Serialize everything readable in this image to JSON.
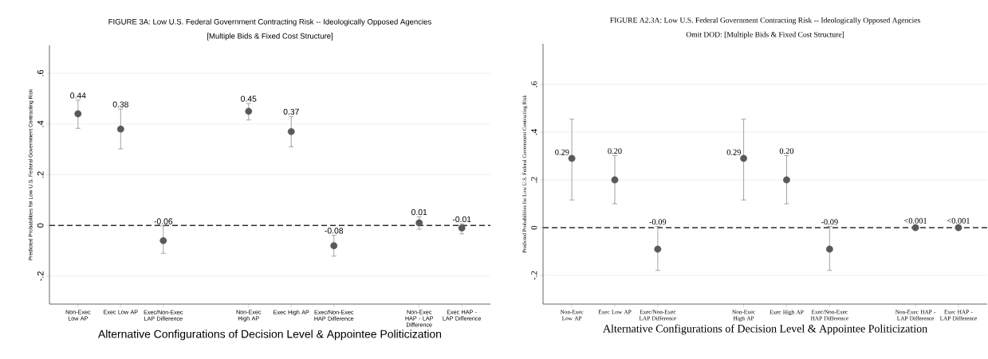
{
  "chart_data": [
    {
      "type": "scatter",
      "title": "FIGURE 3A: Low U.S. Federal Government Contracting Risk -- Ideologically Opposed Agencies",
      "subtitle": "[Multiple Bids & Fixed Cost Structure]",
      "xlabel": "Alternative Configurations of Decision Level & Appointee Politicization",
      "ylabel": "Predicted Probabilities for Low U.S. Federal Government Contracting Risk",
      "categories": [
        "Non-Exec Low AP",
        "Exec Low AP",
        "Exec/Non-Exec LAP Difference",
        null,
        "Non-Exec High AP",
        "Exec High AP",
        "Exec/Non-Exec HAP Difference",
        null,
        "Non-Exec HAP - LAP Difference",
        "Exec HAP - LAP Difference"
      ],
      "values": [
        0.44,
        0.38,
        -0.06,
        null,
        0.45,
        0.37,
        -0.08,
        null,
        0.01,
        -0.01
      ],
      "errors": [
        [
          0.383,
          0.494
        ],
        [
          0.302,
          0.459
        ],
        [
          -0.11,
          -0.002
        ],
        null,
        [
          0.416,
          0.481
        ],
        [
          0.31,
          0.43
        ],
        [
          -0.121,
          -0.039
        ],
        null,
        [
          -0.015,
          0.034
        ],
        [
          -0.033,
          0.006
        ]
      ],
      "value_labels": [
        "0.44",
        "0.38",
        "-0.06",
        null,
        "0.45",
        "0.37",
        "-0.08",
        null,
        "0.01",
        "-0.01"
      ],
      "color": "#595959",
      "marker": "circle",
      "grid": "y",
      "ylim": [
        -0.31,
        0.71
      ],
      "yticks": [
        {
          "value": -0.2,
          "label": "-.2"
        },
        0,
        {
          "value": 0.2,
          "label": ".2"
        },
        {
          "value": 0.4,
          "label": ".4"
        },
        {
          "value": 0.6,
          "label": ".6"
        }
      ],
      "ref_lines": [
        {
          "axis": "y",
          "value": 0,
          "line_style": "dashed",
          "color": "#303030"
        }
      ]
    },
    {
      "type": "scatter",
      "title": "FIGURE A2.3A: Low U.S. Federal Government Contracting Risk -- Ideologically Opposed Agencies",
      "subtitle": "Omit DOD: [Multiple Bids & Fixed Cost Structure]",
      "xlabel": "Alternative Configurations of Decision Level & Appointee Politicization",
      "ylabel": "Predicted Probabilities for Low U.S. Federal Government Contracting Risk",
      "categories": [
        "Non-Exec Low AP",
        "Exec Low AP",
        "Exec/Non-Exec LAP Difference",
        null,
        "Non-Exec High AP",
        "Exec High AP",
        "Exec/Non-Exec HAP Difference",
        null,
        "Non-Exec HAP - LAP Difference",
        "Exec HAP - LAP Difference"
      ],
      "values": [
        0.29,
        0.2,
        -0.09,
        null,
        0.29,
        0.2,
        -0.09,
        null,
        0,
        0
      ],
      "errors": [
        [
          0.116,
          0.454
        ],
        [
          0.1,
          0.302
        ],
        [
          -0.179,
          0.005
        ],
        null,
        [
          0.116,
          0.454
        ],
        [
          0.1,
          0.302
        ],
        [
          -0.179,
          0.005
        ],
        null,
        null,
        null
      ],
      "value_labels": [
        "0.29",
        "0.20",
        "-0.09",
        null,
        "0.29",
        "0.20",
        "-0.09",
        null,
        "<0.001",
        "<0.001"
      ],
      "color": "#595959",
      "marker": "circle",
      "grid": "y",
      "ylim": [
        -0.32,
        0.77
      ],
      "yticks": [
        {
          "value": -0.2,
          "label": "-.2"
        },
        0,
        {
          "value": 0.2,
          "label": ".2"
        },
        {
          "value": 0.4,
          "label": ".4"
        },
        {
          "value": 0.6,
          "label": ".6"
        }
      ],
      "ref_lines": [
        {
          "axis": "y",
          "value": 0,
          "line_style": "dashed",
          "color": "#303030"
        }
      ]
    }
  ]
}
